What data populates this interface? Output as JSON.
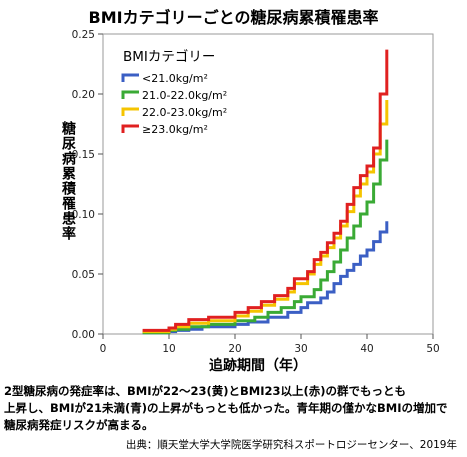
{
  "chart_data": {
    "type": "line",
    "title": "BMIカテゴリーごとの糖尿病累積罹患率",
    "xlabel": "追跡期間（年）",
    "ylabel": "糖尿病累積罹患率",
    "xlim": [
      0,
      50
    ],
    "ylim": [
      0,
      0.25
    ],
    "x_ticks": [
      "0",
      "10",
      "20",
      "30",
      "40",
      "50"
    ],
    "y_ticks": [
      "0.00",
      "0.05",
      "0.10",
      "0.15",
      "0.20",
      "0.25"
    ],
    "legend_title": "BMIカテゴリー",
    "legend_position": "top-left",
    "grid": false,
    "series": [
      {
        "name": "<21.0kg/m²",
        "color": "#3b5fc4",
        "x": [
          6,
          10,
          11,
          13,
          15,
          20,
          22,
          25,
          28,
          30,
          31,
          33,
          34,
          35,
          36,
          37,
          38,
          39,
          40,
          41,
          42,
          43
        ],
        "y": [
          0.001,
          0.002,
          0.003,
          0.004,
          0.006,
          0.008,
          0.01,
          0.014,
          0.018,
          0.022,
          0.026,
          0.03,
          0.035,
          0.042,
          0.048,
          0.053,
          0.058,
          0.065,
          0.07,
          0.077,
          0.085,
          0.094
        ]
      },
      {
        "name": "21.0-22.0kg/m²",
        "color": "#3aaa35",
        "x": [
          6,
          10,
          11,
          13,
          16,
          20,
          23,
          25,
          27,
          29,
          30,
          32,
          33,
          34,
          35,
          36,
          37,
          38,
          39,
          40,
          41,
          42,
          43
        ],
        "y": [
          0.001,
          0.003,
          0.004,
          0.006,
          0.008,
          0.011,
          0.014,
          0.018,
          0.022,
          0.027,
          0.031,
          0.037,
          0.045,
          0.052,
          0.06,
          0.07,
          0.08,
          0.09,
          0.1,
          0.11,
          0.125,
          0.145,
          0.162
        ]
      },
      {
        "name": "22.0-23.0kg/m²",
        "color": "#f5c400",
        "x": [
          6,
          10,
          11,
          13,
          16,
          20,
          22,
          24,
          26,
          28,
          29,
          31,
          32,
          33,
          34,
          35,
          36,
          37,
          38,
          39,
          40,
          41,
          42,
          43
        ],
        "y": [
          0.002,
          0.004,
          0.006,
          0.009,
          0.011,
          0.015,
          0.019,
          0.024,
          0.029,
          0.035,
          0.042,
          0.05,
          0.058,
          0.065,
          0.072,
          0.08,
          0.09,
          0.102,
          0.115,
          0.125,
          0.135,
          0.15,
          0.175,
          0.195
        ]
      },
      {
        "name": "≥23.0kg/m²",
        "color": "#e02020",
        "x": [
          6,
          10,
          11,
          13,
          16,
          20,
          22,
          24,
          26,
          28,
          29,
          31,
          32,
          33,
          34,
          35,
          36,
          37,
          38,
          39,
          40,
          41,
          42,
          43
        ],
        "y": [
          0.003,
          0.005,
          0.008,
          0.012,
          0.014,
          0.018,
          0.022,
          0.027,
          0.032,
          0.038,
          0.046,
          0.052,
          0.062,
          0.068,
          0.076,
          0.084,
          0.094,
          0.108,
          0.122,
          0.132,
          0.14,
          0.155,
          0.2,
          0.237
        ]
      }
    ]
  },
  "caption": [
    "2型糖尿病の発症率は、BMIが22〜23(黄)とBMI23以上(赤)の群でもっとも",
    "上昇し、BMIが21未満(青)の上昇がもっとも低かった。青年期の僅かなBMIの増加で",
    "糖尿病発症リスクが高まる。"
  ],
  "source": "出典：順天堂大学大学院医学研究科スポートロジーセンター、2019年"
}
